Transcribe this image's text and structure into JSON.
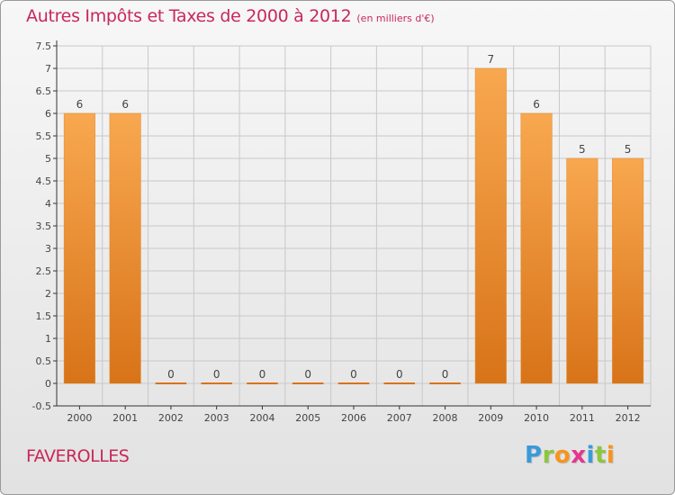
{
  "header": {
    "title": "Autres Impôts et Taxes de 2000 à 2012",
    "unit": "(en milliers d'€)"
  },
  "footer": {
    "commune": "FAVEROLLES",
    "logo": {
      "letters": [
        "P",
        "r",
        "o",
        "x",
        "i",
        "t",
        "i"
      ],
      "colors": [
        "#3a9ad9",
        "#8cc63f",
        "#f7941d",
        "#e5358c",
        "#3a9ad9",
        "#8cc63f",
        "#f7941d"
      ]
    }
  },
  "chart_data": {
    "type": "bar",
    "categories": [
      "2000",
      "2001",
      "2002",
      "2003",
      "2004",
      "2005",
      "2006",
      "2007",
      "2008",
      "2009",
      "2010",
      "2011",
      "2012"
    ],
    "values": [
      6,
      6,
      0,
      0,
      0,
      0,
      0,
      0,
      0,
      7,
      6,
      5,
      5
    ],
    "data_labels": [
      "6",
      "6",
      "0",
      "0",
      "0",
      "0",
      "0",
      "0",
      "0",
      "7",
      "6",
      "5",
      "5"
    ],
    "y_ticks": [
      "-0.5",
      "0",
      "0.5",
      "1",
      "1.5",
      "2",
      "2.5",
      "3",
      "3.5",
      "4",
      "4.5",
      "5",
      "5.5",
      "6",
      "6.5",
      "7",
      "7.5"
    ],
    "ylim": [
      -0.5,
      7.5
    ],
    "grid": true,
    "colors": {
      "bar_light": "#f8a850",
      "bar_dark": "#d87318",
      "grid": "#c8c8c8",
      "axis": "#333333",
      "text": "#444444"
    }
  }
}
